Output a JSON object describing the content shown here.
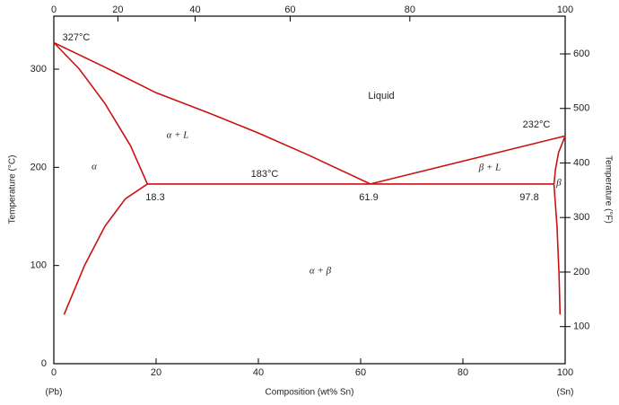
{
  "chart_data": {
    "type": "line",
    "x_label": "Composition (wt% Sn)",
    "y_label": "Temperature (°C)",
    "y2_label": "Temperature (°F)",
    "left_end_label": "(Pb)",
    "right_end_label": "(Sn)",
    "xlim": [
      0,
      100
    ],
    "xticks": [
      0,
      20,
      40,
      60,
      80,
      100
    ],
    "x2ticks": [
      0,
      20,
      40,
      60,
      80,
      100
    ],
    "ylim": [
      0,
      354
    ],
    "yticks": [
      0,
      100,
      200,
      300
    ],
    "y2lim": [
      32,
      669.2
    ],
    "y2ticks": [
      100,
      200,
      300,
      400,
      500,
      600
    ],
    "series": [
      {
        "color": "#cc1111",
        "x": [
          0,
          10,
          20,
          30,
          40,
          50,
          61.9
        ],
        "values": [
          327,
          302,
          276,
          256,
          235,
          212,
          183
        ]
      },
      {
        "color": "#cc1111",
        "x": [
          61.9,
          100
        ],
        "values": [
          183,
          232
        ]
      },
      {
        "color": "#cc1111",
        "x": [
          18.3,
          97.8
        ],
        "values": [
          183,
          183
        ]
      },
      {
        "color": "#cc1111",
        "x": [
          0,
          5,
          10,
          15,
          18.3
        ],
        "values": [
          327,
          300,
          265,
          222,
          183
        ]
      },
      {
        "color": "#cc1111",
        "x": [
          18.3,
          14,
          10,
          6,
          2
        ],
        "values": [
          183,
          168,
          140,
          100,
          50
        ]
      },
      {
        "color": "#cc1111",
        "x": [
          100,
          98.7,
          98.1,
          97.8
        ],
        "values": [
          232,
          215,
          198,
          183
        ]
      },
      {
        "color": "#cc1111",
        "x": [
          97.8,
          98.4,
          98.8,
          99
        ],
        "values": [
          183,
          140,
          90,
          50
        ]
      }
    ],
    "annotations": [
      "327°C",
      "232°C",
      "183°C",
      "18.3",
      "61.9",
      "97.8",
      "Liquid",
      "α + L",
      "α",
      "β + L",
      "β",
      "α + β"
    ]
  }
}
